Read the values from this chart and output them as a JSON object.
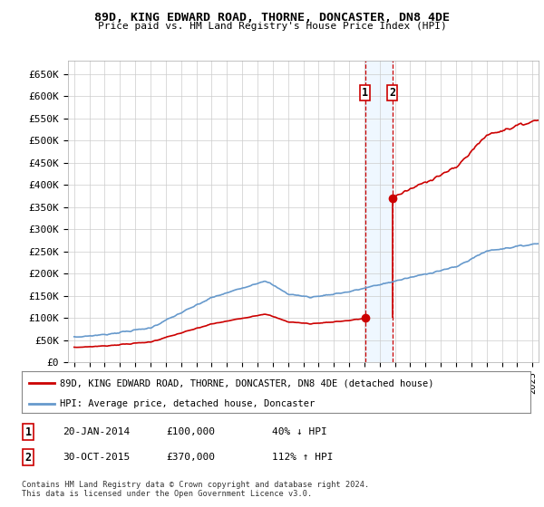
{
  "title1": "89D, KING EDWARD ROAD, THORNE, DONCASTER, DN8 4DE",
  "title2": "Price paid vs. HM Land Registry's House Price Index (HPI)",
  "ylim": [
    0,
    680000
  ],
  "yticks": [
    0,
    50000,
    100000,
    150000,
    200000,
    250000,
    300000,
    350000,
    400000,
    450000,
    500000,
    550000,
    600000,
    650000
  ],
  "ytick_labels": [
    "£0",
    "£50K",
    "£100K",
    "£150K",
    "£200K",
    "£250K",
    "£300K",
    "£350K",
    "£400K",
    "£450K",
    "£500K",
    "£550K",
    "£600K",
    "£650K"
  ],
  "sale1_date": 2014.05,
  "sale1_price": 100000,
  "sale2_date": 2015.83,
  "sale2_price": 370000,
  "hpi_color": "#6699cc",
  "price_color": "#cc0000",
  "legend1": "89D, KING EDWARD ROAD, THORNE, DONCASTER, DN8 4DE (detached house)",
  "legend2": "HPI: Average price, detached house, Doncaster",
  "note1_num": "1",
  "note1_date": "20-JAN-2014",
  "note1_price": "£100,000",
  "note1_hpi": "40% ↓ HPI",
  "note2_num": "2",
  "note2_date": "30-OCT-2015",
  "note2_price": "£370,000",
  "note2_hpi": "112% ↑ HPI",
  "footer": "Contains HM Land Registry data © Crown copyright and database right 2024.\nThis data is licensed under the Open Government Licence v3.0.",
  "bg_color": "#ffffff",
  "grid_color": "#cccccc",
  "shade_color": "#ddeeff"
}
